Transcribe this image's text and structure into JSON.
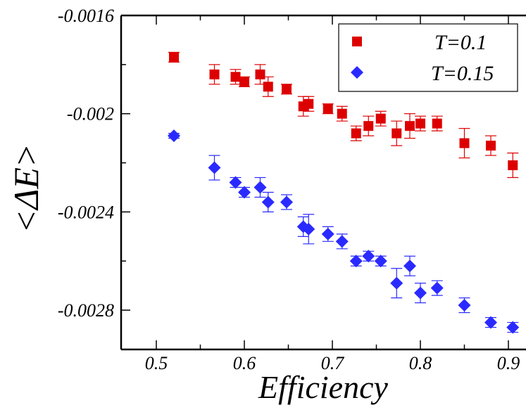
{
  "chart_data": {
    "type": "scatter",
    "title": "",
    "xlabel": "Efficiency",
    "ylabel": "<ΔE>",
    "xlim": [
      0.46,
      0.92
    ],
    "ylim": [
      -0.00296,
      -0.0016
    ],
    "x_ticks": [
      "0.5",
      "0.6",
      "0.7",
      "0.8",
      "0.9"
    ],
    "y_ticks": [
      "-0.0016",
      "-0.002",
      "-0.0024",
      "-0.0028"
    ],
    "grid": false,
    "legend_position": "top-right",
    "series": [
      {
        "name": "T=0.1",
        "marker": "square",
        "color": "#dd0000",
        "x": [
          0.52,
          0.566,
          0.59,
          0.6,
          0.618,
          0.627,
          0.648,
          0.667,
          0.673,
          0.695,
          0.711,
          0.727,
          0.741,
          0.755,
          0.773,
          0.788,
          0.8,
          0.819,
          0.85,
          0.88,
          0.905
        ],
        "y": [
          -0.00177,
          -0.00184,
          -0.00185,
          -0.00187,
          -0.00184,
          -0.00189,
          -0.0019,
          -0.00197,
          -0.00196,
          -0.00198,
          -0.002,
          -0.00208,
          -0.00205,
          -0.00202,
          -0.00208,
          -0.00205,
          -0.00204,
          -0.00204,
          -0.00212,
          -0.00213,
          -0.00221
        ],
        "err": [
          2e-05,
          4e-05,
          3e-05,
          2e-05,
          4e-05,
          4e-05,
          2e-05,
          4e-05,
          3e-05,
          2e-05,
          3e-05,
          3e-05,
          4e-05,
          3e-05,
          5e-05,
          5e-05,
          3e-05,
          3e-05,
          6e-05,
          4e-05,
          5e-05
        ]
      },
      {
        "name": "T=0.15",
        "marker": "diamond",
        "color": "#2a2aff",
        "x": [
          0.52,
          0.566,
          0.59,
          0.6,
          0.618,
          0.627,
          0.648,
          0.667,
          0.673,
          0.695,
          0.711,
          0.727,
          0.741,
          0.755,
          0.773,
          0.788,
          0.8,
          0.819,
          0.85,
          0.88,
          0.905
        ],
        "y": [
          -0.00209,
          -0.00222,
          -0.00228,
          -0.00232,
          -0.0023,
          -0.00236,
          -0.00236,
          -0.00246,
          -0.00247,
          -0.00249,
          -0.00252,
          -0.0026,
          -0.00258,
          -0.0026,
          -0.00269,
          -0.00262,
          -0.00273,
          -0.00271,
          -0.00278,
          -0.00285,
          -0.00287
        ],
        "err": [
          1e-05,
          5e-05,
          2e-05,
          2e-05,
          4e-05,
          4e-05,
          3e-05,
          4e-05,
          6e-05,
          3e-05,
          3e-05,
          2e-05,
          2e-05,
          2e-05,
          6e-05,
          4e-05,
          4e-05,
          3e-05,
          3e-05,
          2e-05,
          2e-05
        ]
      }
    ]
  }
}
